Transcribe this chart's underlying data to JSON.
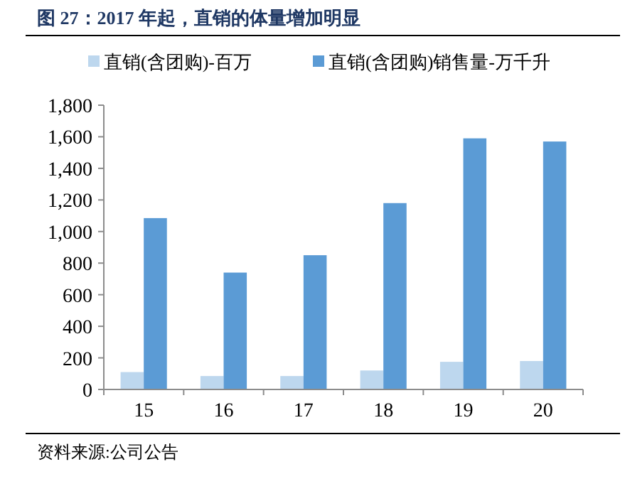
{
  "chart_data": {
    "type": "bar",
    "title": "图 27：2017 年起，直销的体量增加明显",
    "categories": [
      "15",
      "16",
      "17",
      "18",
      "19",
      "20"
    ],
    "series": [
      {
        "name": "直销(含团购)-百万",
        "color": "#bdd7ee",
        "values": [
          110,
          85,
          85,
          120,
          175,
          180
        ]
      },
      {
        "name": "直销(含团购)销售量-万千升",
        "color": "#5b9bd5",
        "values": [
          1085,
          740,
          850,
          1180,
          1590,
          1570
        ]
      }
    ],
    "ylim": [
      0,
      1800
    ],
    "yticks": [
      {
        "value": 0,
        "label": "0"
      },
      {
        "value": 200,
        "label": "200"
      },
      {
        "value": 400,
        "label": "400"
      },
      {
        "value": 600,
        "label": "600"
      },
      {
        "value": 800,
        "label": "800"
      },
      {
        "value": 1000,
        "label": "1,000"
      },
      {
        "value": 1200,
        "label": "1,200"
      },
      {
        "value": 1400,
        "label": "1,400"
      },
      {
        "value": 1600,
        "label": "1,600"
      },
      {
        "value": 1800,
        "label": "1,800"
      }
    ],
    "grid": false,
    "legend": "top",
    "annotations": [
      "资料来源:公司公告"
    ]
  }
}
